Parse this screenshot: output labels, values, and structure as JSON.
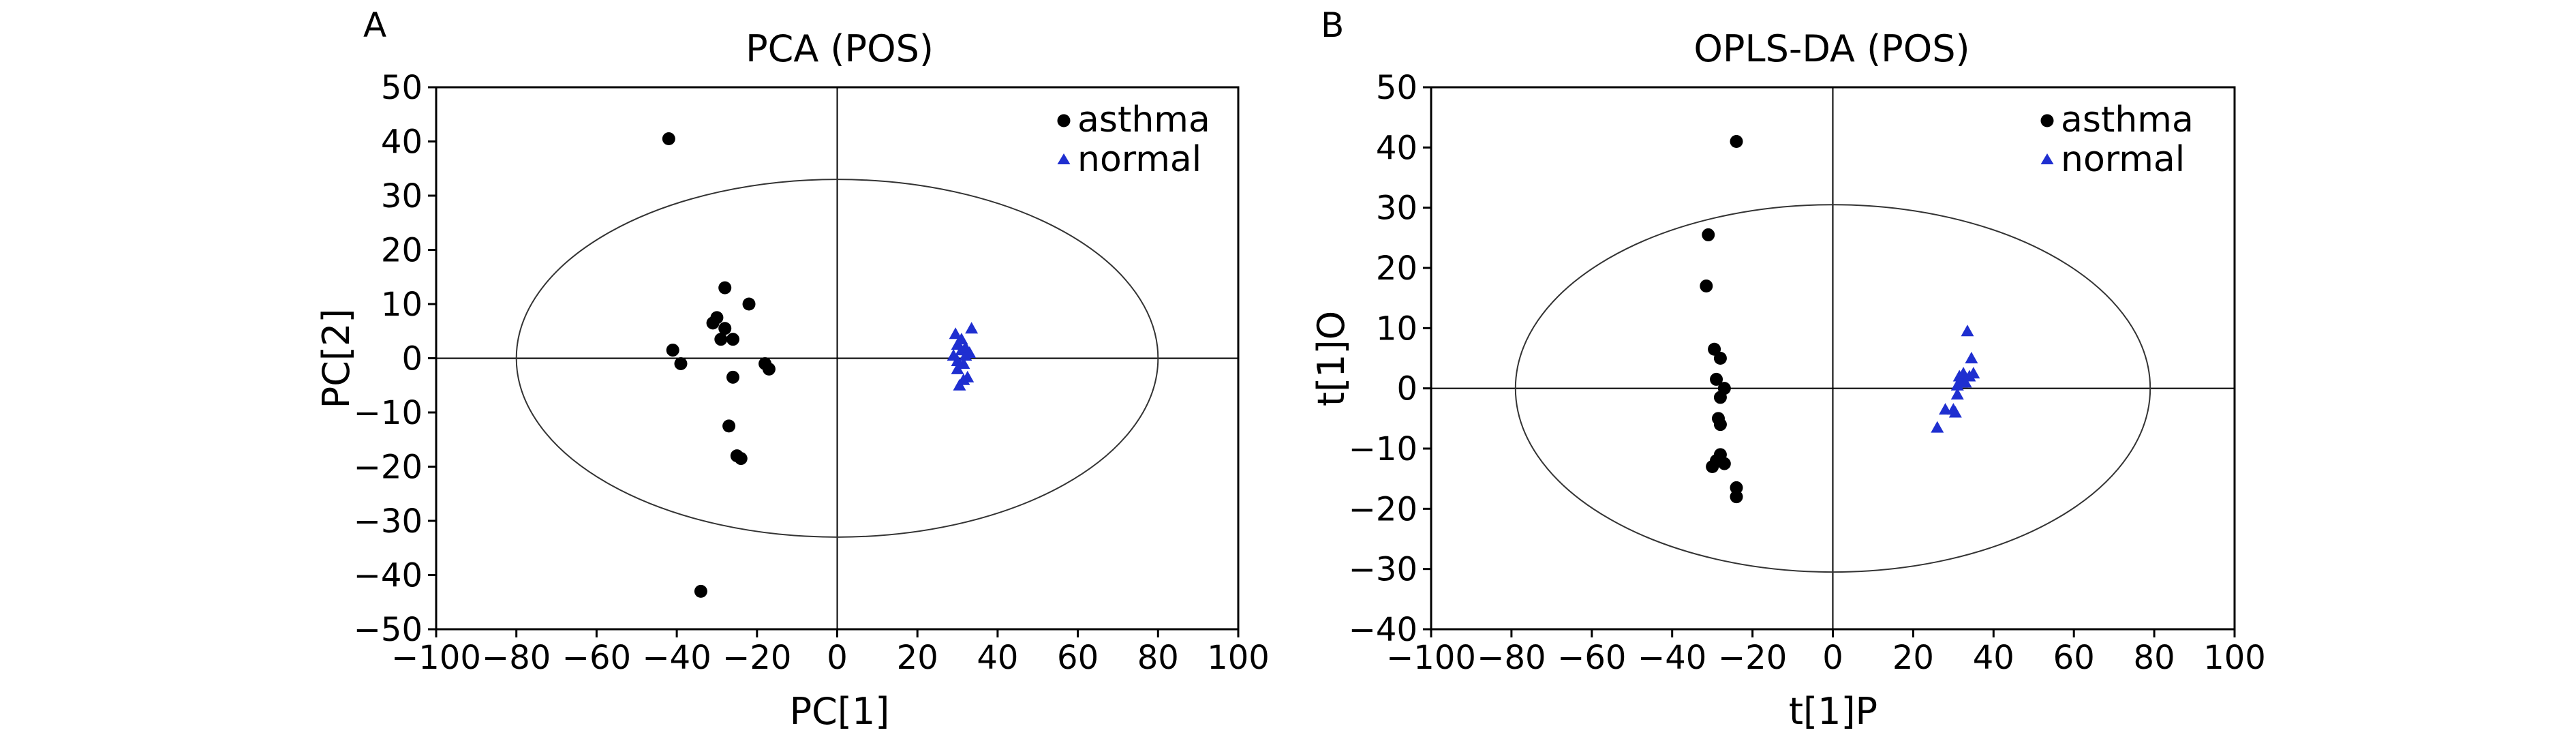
{
  "chart_data": [
    {
      "panel": "A",
      "type": "scatter",
      "title": "PCA (POS)",
      "xlabel": "PC[1]",
      "ylabel": "PC[2]",
      "xlim": [
        -100,
        100
      ],
      "ylim": [
        -50,
        50
      ],
      "xticks": [
        -100,
        -80,
        -60,
        -40,
        -20,
        0,
        20,
        40,
        60,
        80,
        100
      ],
      "yticks": [
        -50,
        -40,
        -30,
        -20,
        -10,
        0,
        10,
        20,
        30,
        40,
        50
      ],
      "ellipse": {
        "rx": 80,
        "ry": 33
      },
      "legend_position": "top-right",
      "series": [
        {
          "name": "asthma",
          "marker": "circle",
          "color": "#000000",
          "x": [
            -42,
            -41,
            -39,
            -34,
            -31,
            -30,
            -29,
            -28,
            -27,
            -26,
            -26,
            -25,
            -24,
            -22,
            -18,
            -17,
            -28
          ],
          "y": [
            40.5,
            1.5,
            -1,
            -43,
            6.5,
            7.5,
            3.5,
            5.5,
            -12.5,
            3.5,
            -3.5,
            -18,
            -18.5,
            10,
            -1,
            -2,
            13
          ]
        },
        {
          "name": "normal",
          "marker": "triangle",
          "color": "#1f2fd0",
          "x": [
            29,
            29.5,
            30,
            30,
            30.5,
            31,
            31,
            31.5,
            32,
            32,
            32.5,
            33,
            33.5,
            30,
            31.5
          ],
          "y": [
            0.5,
            4.5,
            -2,
            2.5,
            -5,
            1.5,
            3.5,
            -1,
            0.5,
            2,
            -3.5,
            1,
            5.5,
            -0.5,
            -4
          ]
        }
      ]
    },
    {
      "panel": "B",
      "type": "scatter",
      "title": "OPLS-DA (POS)",
      "xlabel": "t[1]P",
      "ylabel": "t[1]O",
      "xlim": [
        -100,
        100
      ],
      "ylim": [
        -40,
        50
      ],
      "xticks": [
        -100,
        -80,
        -60,
        -40,
        -20,
        0,
        20,
        40,
        60,
        80,
        100
      ],
      "yticks": [
        -40,
        -30,
        -20,
        -10,
        0,
        10,
        20,
        30,
        40,
        50
      ],
      "ellipse": {
        "rx": 79,
        "ry": 30.5
      },
      "legend_position": "top-right",
      "series": [
        {
          "name": "asthma",
          "marker": "circle",
          "color": "#000000",
          "x": [
            -24,
            -31,
            -31.5,
            -29.5,
            -28,
            -29,
            -27,
            -28,
            -28.5,
            -28,
            -28,
            -29,
            -27,
            -30,
            -24,
            -24
          ],
          "y": [
            41,
            25.5,
            17,
            6.5,
            5,
            1.5,
            0,
            -1.5,
            -5,
            -6,
            -11,
            -12,
            -12.5,
            -13,
            -16.5,
            -18
          ]
        },
        {
          "name": "normal",
          "marker": "triangle",
          "color": "#1f2fd0",
          "x": [
            26,
            28,
            30,
            31,
            31.5,
            32,
            32.5,
            33,
            33.5,
            34,
            34.5,
            35,
            31,
            30.5
          ],
          "y": [
            -6.5,
            -3.5,
            -3.5,
            0.5,
            2,
            1,
            2.5,
            1,
            9.5,
            2,
            5,
            2.5,
            -1,
            -4
          ]
        }
      ]
    }
  ]
}
